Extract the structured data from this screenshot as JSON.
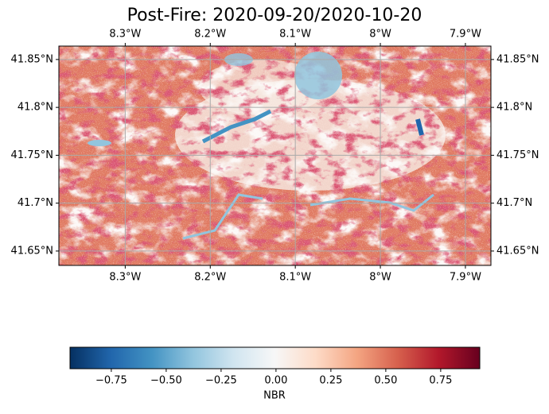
{
  "chart_data": {
    "type": "map",
    "title": "Post-Fire: 2020-09-20/2020-10-20",
    "xlim": [
      -8.378,
      -7.87
    ],
    "xticks": [
      {
        "value": -8.3,
        "label": "8.3°W"
      },
      {
        "value": -8.2,
        "label": "8.2°W"
      },
      {
        "value": -8.1,
        "label": "8.1°W"
      },
      {
        "value": -8.0,
        "label": "8°W"
      },
      {
        "value": -7.9,
        "label": "7.9°W"
      }
    ],
    "ylim": [
      41.635,
      41.864
    ],
    "yticks": [
      {
        "value": 41.65,
        "label": "41.65°N"
      },
      {
        "value": 41.7,
        "label": "41.7°N"
      },
      {
        "value": 41.75,
        "label": "41.75°N"
      },
      {
        "value": 41.8,
        "label": "41.8°N"
      },
      {
        "value": 41.85,
        "label": "41.85°N"
      }
    ],
    "grid": true,
    "colorbar": {
      "label": "NBR",
      "lim": [
        -0.938,
        0.928
      ],
      "ticks": [
        {
          "value": -0.75,
          "label": "−0.75"
        },
        {
          "value": -0.5,
          "label": "−0.50"
        },
        {
          "value": -0.25,
          "label": "−0.25"
        },
        {
          "value": 0,
          "label": "0.00"
        },
        0.25,
        {
          "value": 0.5,
          "label": "0.50"
        },
        0.75
      ],
      "colors": [
        "#053061",
        "#2166ac",
        "#4393c3",
        "#92c5de",
        "#d1e5f0",
        "#f7f7f7",
        "#fddbc7",
        "#f4a582",
        "#d6604d",
        "#b2182b",
        "#67001f"
      ]
    }
  }
}
